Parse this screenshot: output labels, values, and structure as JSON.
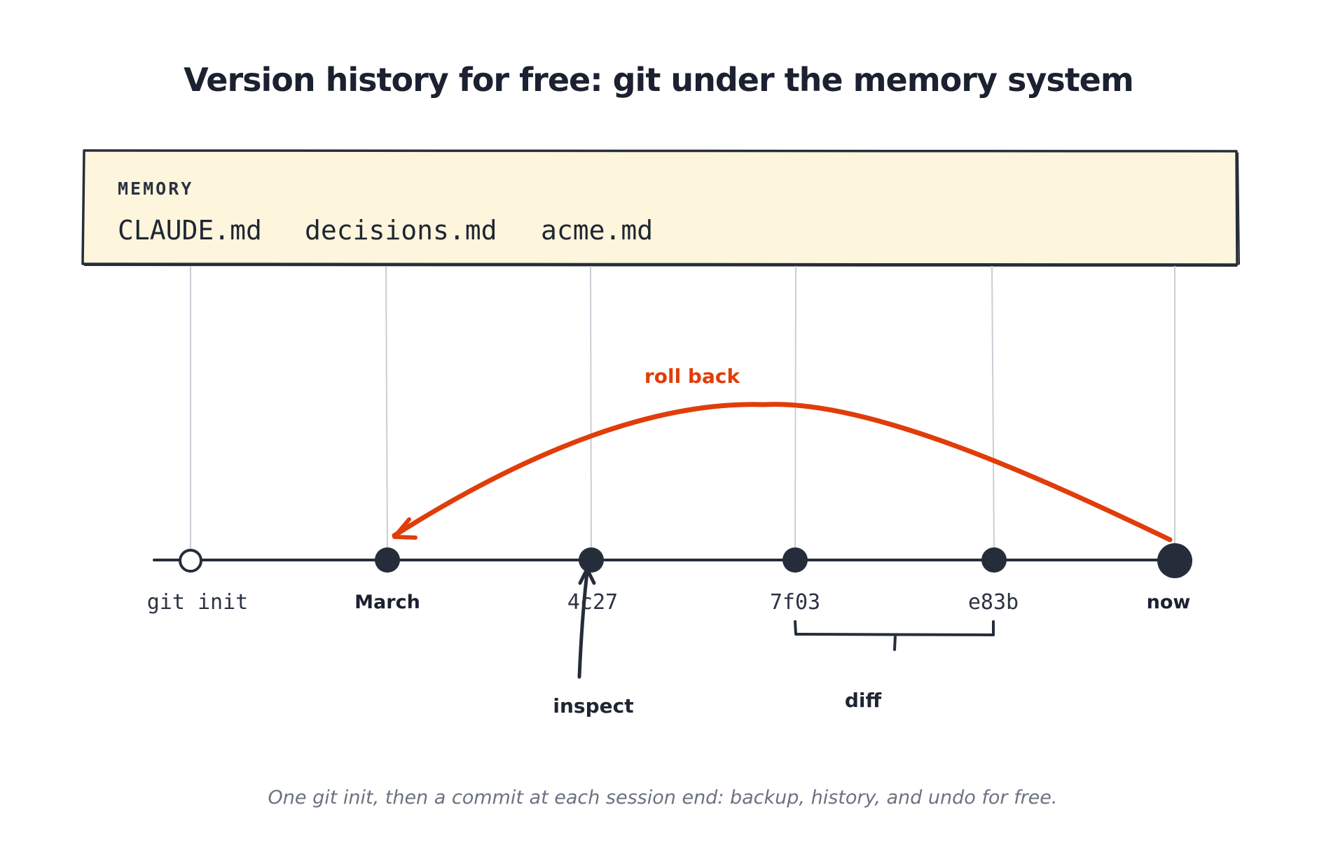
{
  "title": "Version history for free: git under the memory system",
  "memory": {
    "heading": "MEMORY",
    "files": [
      "CLAUDE.md",
      "decisions.md",
      "acme.md"
    ]
  },
  "commits": [
    {
      "label": "git init",
      "label_style": "mono",
      "marker": "hollow"
    },
    {
      "label": "March",
      "label_style": "bold",
      "marker": "filled"
    },
    {
      "label": "4c27",
      "label_style": "mono",
      "marker": "filled"
    },
    {
      "label": "7f03",
      "label_style": "mono",
      "marker": "filled"
    },
    {
      "label": "e83b",
      "label_style": "mono",
      "marker": "filled"
    },
    {
      "label": "now",
      "label_style": "bold",
      "marker": "filled-large"
    }
  ],
  "annotations": {
    "roll_back": "roll back",
    "inspect": "inspect",
    "diff": "diff"
  },
  "caption": "One git init, then a commit at each session end: backup, history, and undo for free.",
  "colors": {
    "accent": "#e03d0a",
    "ink": "#262d3a",
    "memory_fill": "#fdf5dc",
    "connector": "#c9ced6"
  }
}
